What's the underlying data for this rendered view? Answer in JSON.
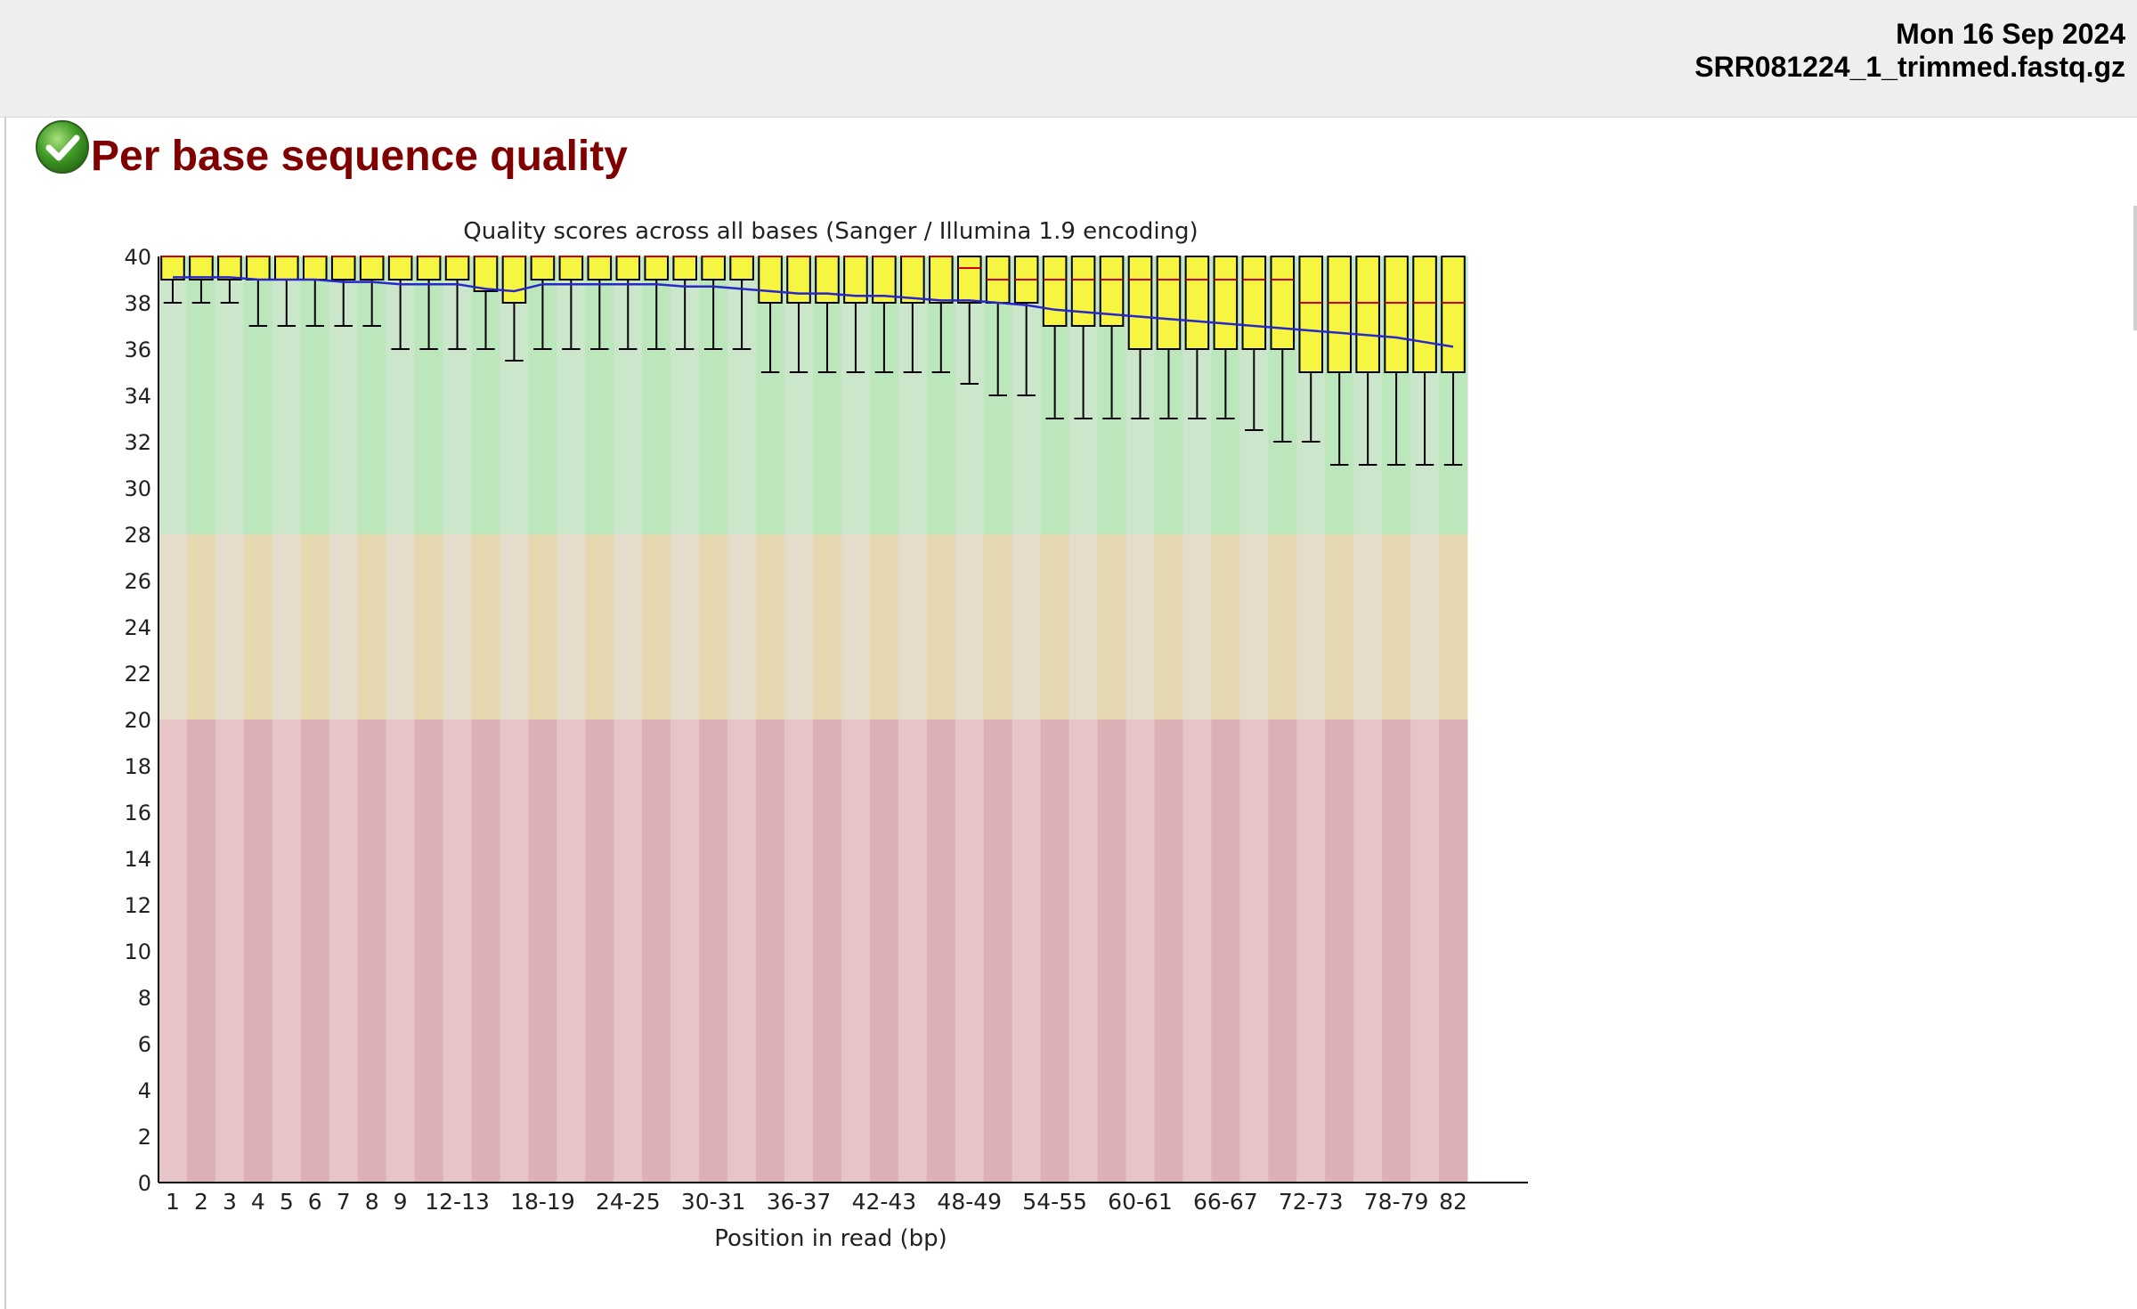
{
  "header": {
    "date": "Mon 16 Sep 2024",
    "filename": "SRR081224_1_trimmed.fastq.gz"
  },
  "module": {
    "title": "Per base sequence quality",
    "status_icon": "check-circle-icon",
    "status": "pass"
  },
  "chart_data": {
    "type": "boxplot",
    "title": "Quality scores across all bases (Sanger / Illumina 1.9 encoding)",
    "xlabel": "Position in read (bp)",
    "ylabel": "",
    "ylim": [
      0,
      40
    ],
    "yticks": [
      0,
      2,
      4,
      6,
      8,
      10,
      12,
      14,
      16,
      18,
      20,
      22,
      24,
      26,
      28,
      30,
      32,
      34,
      36,
      38,
      40
    ],
    "zones": [
      {
        "from": 28,
        "to": 40,
        "color": "#c8e6c0"
      },
      {
        "from": 20,
        "to": 28,
        "color": "#e6dcc0"
      },
      {
        "from": 0,
        "to": 20,
        "color": "#e6c0c0"
      }
    ],
    "colors": {
      "box_fill": "#f5f542",
      "median": "#d00000",
      "mean_line": "#2828c8",
      "whisker": "#000000",
      "band_light_green": "#cce6cc",
      "band_dark_green": "#bce6bc",
      "band_light_orange": "#e6dccc",
      "band_dark_orange": "#e6d8b0",
      "band_light_red": "#e6c4c8",
      "band_dark_red": "#dcb0b4"
    },
    "categories": [
      "1",
      "2",
      "3",
      "4",
      "5",
      "6",
      "7",
      "8",
      "9",
      "10-11",
      "12-13",
      "14-15",
      "16-17",
      "18-19",
      "20-21",
      "22-23",
      "24-25",
      "26-27",
      "28-29",
      "30-31",
      "32-33",
      "34-35",
      "36-37",
      "38-39",
      "40-41",
      "42-43",
      "44-45",
      "46-47",
      "48-49",
      "50-51",
      "52-53",
      "54-55",
      "56-57",
      "58-59",
      "60-61",
      "62-63",
      "64-65",
      "66-67",
      "68-69",
      "70-71",
      "72-73",
      "74-75",
      "76-77",
      "78-79",
      "80-81",
      "82"
    ],
    "x_tick_labels": [
      "1",
      "2",
      "3",
      "4",
      "5",
      "6",
      "7",
      "8",
      "9",
      "12-13",
      "18-19",
      "24-25",
      "30-31",
      "36-37",
      "42-43",
      "48-49",
      "54-55",
      "60-61",
      "66-67",
      "72-73",
      "78-79",
      "82"
    ],
    "series": [
      {
        "name": "upper_whisker",
        "values": [
          40,
          40,
          40,
          40,
          40,
          40,
          40,
          40,
          40,
          40,
          40,
          40,
          40,
          40,
          40,
          40,
          40,
          40,
          40,
          40,
          40,
          40,
          40,
          40,
          40,
          40,
          40,
          40,
          40,
          40,
          40,
          40,
          40,
          40,
          40,
          40,
          40,
          40,
          40,
          40,
          40,
          40,
          40,
          40,
          40,
          40
        ]
      },
      {
        "name": "upper_quartile",
        "values": [
          40,
          40,
          40,
          40,
          40,
          40,
          40,
          40,
          40,
          40,
          40,
          40,
          40,
          40,
          40,
          40,
          40,
          40,
          40,
          40,
          40,
          40,
          40,
          40,
          40,
          40,
          40,
          40,
          40,
          40,
          40,
          40,
          40,
          40,
          40,
          40,
          40,
          40,
          40,
          40,
          40,
          40,
          40,
          40,
          40,
          40
        ]
      },
      {
        "name": "median",
        "values": [
          40,
          40,
          40,
          40,
          40,
          40,
          40,
          40,
          40,
          40,
          40,
          40,
          40,
          40,
          40,
          40,
          40,
          40,
          40,
          40,
          40,
          40,
          40,
          40,
          40,
          40,
          40,
          40,
          39.5,
          39,
          39,
          39,
          39,
          39,
          39,
          39,
          39,
          39,
          39,
          39,
          38,
          38,
          38,
          38,
          38,
          38
        ]
      },
      {
        "name": "lower_quartile",
        "values": [
          39,
          39,
          39,
          39,
          39,
          39,
          39,
          39,
          39,
          39,
          39,
          38.5,
          38,
          39,
          39,
          39,
          39,
          39,
          39,
          39,
          39,
          38,
          38,
          38,
          38,
          38,
          38,
          38,
          38,
          38,
          38,
          37,
          37,
          37,
          36,
          36,
          36,
          36,
          36,
          36,
          35,
          35,
          35,
          35,
          35,
          35
        ]
      },
      {
        "name": "lower_whisker",
        "values": [
          38,
          38,
          38,
          37,
          37,
          37,
          37,
          37,
          36,
          36,
          36,
          36,
          35.5,
          36,
          36,
          36,
          36,
          36,
          36,
          36,
          36,
          35,
          35,
          35,
          35,
          35,
          35,
          35,
          34.5,
          34,
          34,
          33,
          33,
          33,
          33,
          33,
          33,
          33,
          32.5,
          32,
          32,
          31,
          31,
          31,
          31,
          31
        ]
      },
      {
        "name": "mean",
        "values": [
          39.1,
          39.1,
          39.1,
          39.0,
          39.0,
          39.0,
          38.9,
          38.9,
          38.8,
          38.8,
          38.8,
          38.6,
          38.5,
          38.8,
          38.8,
          38.8,
          38.8,
          38.8,
          38.7,
          38.7,
          38.6,
          38.5,
          38.4,
          38.4,
          38.3,
          38.3,
          38.2,
          38.1,
          38.1,
          38.0,
          37.9,
          37.7,
          37.6,
          37.5,
          37.4,
          37.3,
          37.2,
          37.1,
          37.0,
          36.9,
          36.8,
          36.7,
          36.6,
          36.5,
          36.3,
          36.1
        ]
      }
    ]
  }
}
